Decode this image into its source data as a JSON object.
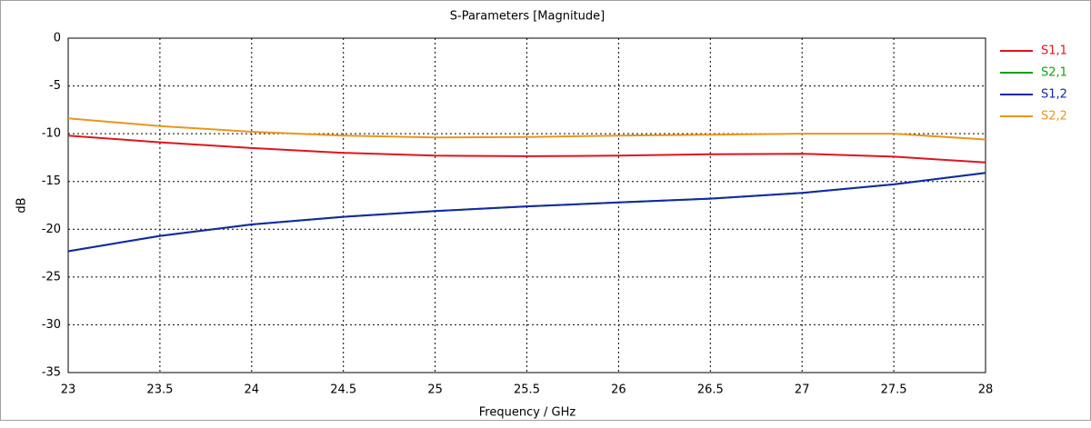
{
  "chart_data": {
    "type": "line",
    "title": "S-Parameters [Magnitude]",
    "x_label": "Frequency / GHz",
    "y_label": "dB",
    "x": [
      23,
      23.5,
      24,
      24.5,
      25,
      25.5,
      26,
      26.5,
      27,
      27.5,
      28
    ],
    "series": [
      {
        "name": "S1,1",
        "color": "#e0141e",
        "values": [
          -10.2,
          -10.9,
          -11.5,
          -12.0,
          -12.3,
          -12.35,
          -12.3,
          -12.15,
          -12.1,
          -12.4,
          -13.0
        ]
      },
      {
        "name": "S2,1",
        "color": "#12a012",
        "values": [
          -22.3,
          -20.7,
          -19.5,
          -18.7,
          -18.1,
          -17.6,
          -17.2,
          -16.8,
          -16.2,
          -15.3,
          -14.1
        ]
      },
      {
        "name": "S1,2",
        "color": "#1428a8",
        "values": [
          -22.3,
          -20.7,
          -19.5,
          -18.7,
          -18.1,
          -17.6,
          -17.2,
          -16.8,
          -16.2,
          -15.3,
          -14.1
        ]
      },
      {
        "name": "S2,2",
        "color": "#e8961e",
        "values": [
          -8.4,
          -9.2,
          -9.8,
          -10.2,
          -10.4,
          -10.35,
          -10.2,
          -10.1,
          -10.0,
          -10.0,
          -10.6
        ]
      }
    ],
    "xlim": [
      23,
      28
    ],
    "ylim": [
      -35,
      0
    ],
    "xticks": [
      23,
      23.5,
      24,
      24.5,
      25,
      25.5,
      26,
      26.5,
      27,
      27.5,
      28
    ],
    "yticks": [
      -35,
      -30,
      -25,
      -20,
      -15,
      -10,
      -5,
      0
    ],
    "grid": true,
    "legend": "right"
  }
}
